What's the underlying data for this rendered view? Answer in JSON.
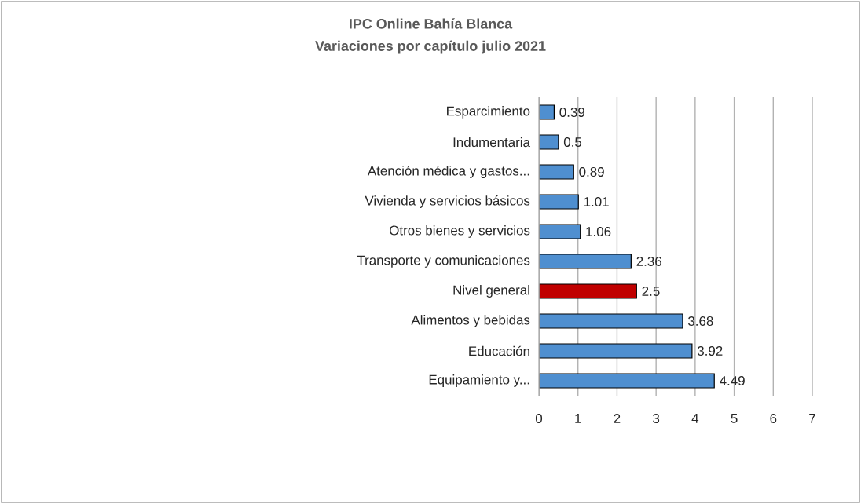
{
  "chart_data": {
    "type": "bar",
    "orientation": "horizontal",
    "title": "IPC Online Bahía Blanca",
    "subtitle": "Variaciones por capítulo julio 2021",
    "categories": [
      "Esparcimiento",
      "Indumentaria",
      "Atención médica y gastos...",
      "Vivienda y servicios básicos",
      "Otros bienes y servicios",
      "Transporte y comunicaciones",
      "Nivel general",
      "Alimentos y bebidas",
      "Educación",
      "Equipamiento y..."
    ],
    "values": [
      0.39,
      0.5,
      0.89,
      1.01,
      1.06,
      2.36,
      2.5,
      3.68,
      3.92,
      4.49
    ],
    "colors": [
      "#4f8fd0",
      "#4f8fd0",
      "#4f8fd0",
      "#4f8fd0",
      "#4f8fd0",
      "#4f8fd0",
      "#c00000",
      "#4f8fd0",
      "#4f8fd0",
      "#4f8fd0"
    ],
    "xlim": [
      0,
      7
    ],
    "xticks": [
      0,
      1,
      2,
      3,
      4,
      5,
      6,
      7
    ],
    "grid": "x",
    "data_labels": true
  }
}
